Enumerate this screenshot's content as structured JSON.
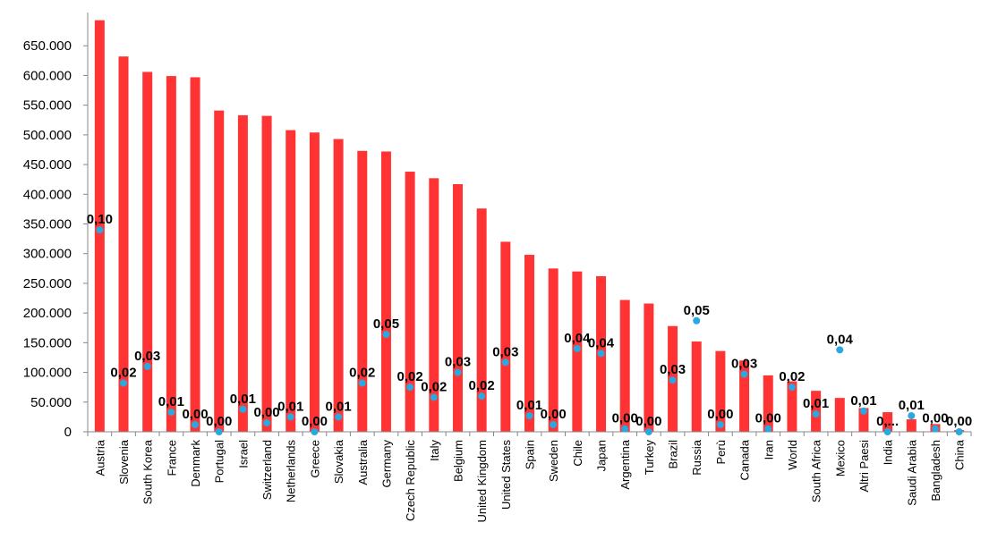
{
  "chart_data": {
    "type": "bar",
    "title": "",
    "xlabel": "",
    "ylabel": "",
    "ylim": [
      0,
      700000
    ],
    "yticks": [
      0,
      50000,
      100000,
      150000,
      200000,
      250000,
      300000,
      350000,
      400000,
      450000,
      500000,
      550000,
      600000,
      650000
    ],
    "ytick_labels": [
      "0",
      "50.000",
      "100.000",
      "150.000",
      "200.000",
      "250.000",
      "300.000",
      "350.000",
      "400.000",
      "450.000",
      "500.000",
      "550.000",
      "600.000",
      "650.000"
    ],
    "grid": false,
    "legend": "none",
    "categories": [
      "Austria",
      "Slovenia",
      "South Korea",
      "France",
      "Denmark",
      "Portugal",
      "Israel",
      "Switzerland",
      "Netherlands",
      "Greece",
      "Slovakia",
      "Australia",
      "Germany",
      "Czech Republic",
      "Italy",
      "Belgium",
      "United Kingdom",
      "United States",
      "Spain",
      "Sweden",
      "Chile",
      "Japan",
      "Argentina",
      "Turkey",
      "Brazil",
      "Russia",
      "Perù",
      "Canada",
      "Iran",
      "World",
      "South Africa",
      "Mexico",
      "Altri Paesi",
      "India",
      "Saudi Arabia",
      "Bangladesh",
      "China"
    ],
    "series": [
      {
        "kind": "bar",
        "color": "#ff3333",
        "values": [
          693000,
          632000,
          606000,
          599000,
          597000,
          541000,
          533000,
          532000,
          508000,
          504000,
          493000,
          473000,
          472000,
          438000,
          427000,
          417000,
          376000,
          320000,
          298000,
          275000,
          270000,
          262000,
          222000,
          216000,
          178000,
          152000,
          136000,
          120000,
          95000,
          85000,
          69000,
          57000,
          40000,
          33000,
          21000,
          13000,
          3000
        ]
      },
      {
        "kind": "points",
        "color": "#2aa8e0",
        "values": [
          340000,
          82000,
          110000,
          33000,
          12000,
          0,
          38000,
          15000,
          25000,
          0,
          25000,
          82000,
          164000,
          75000,
          58000,
          100000,
          60000,
          117000,
          27000,
          12000,
          140000,
          132000,
          5000,
          0,
          87000,
          187000,
          12000,
          97000,
          5000,
          75000,
          30000,
          138000,
          35000,
          0,
          27000,
          5000,
          0
        ],
        "labels": [
          "0,10",
          "0,02",
          "0,03",
          "0,01",
          "0,00",
          "0,00",
          "0,01",
          "0,00",
          "0,01",
          "0,00",
          "0,01",
          "0,02",
          "0,05",
          "0,02",
          "0,02",
          "0,03",
          "0,02",
          "0,03",
          "0,01",
          "0,00",
          "0,04",
          "0,04",
          "0,00",
          "0,00",
          "0,03",
          "0,05",
          "0,00",
          "0,03",
          "0,00",
          "0,02",
          "0,01",
          "0,04",
          "0,01",
          "0,...",
          "0,01",
          "0,00",
          "0,00"
        ]
      }
    ]
  }
}
